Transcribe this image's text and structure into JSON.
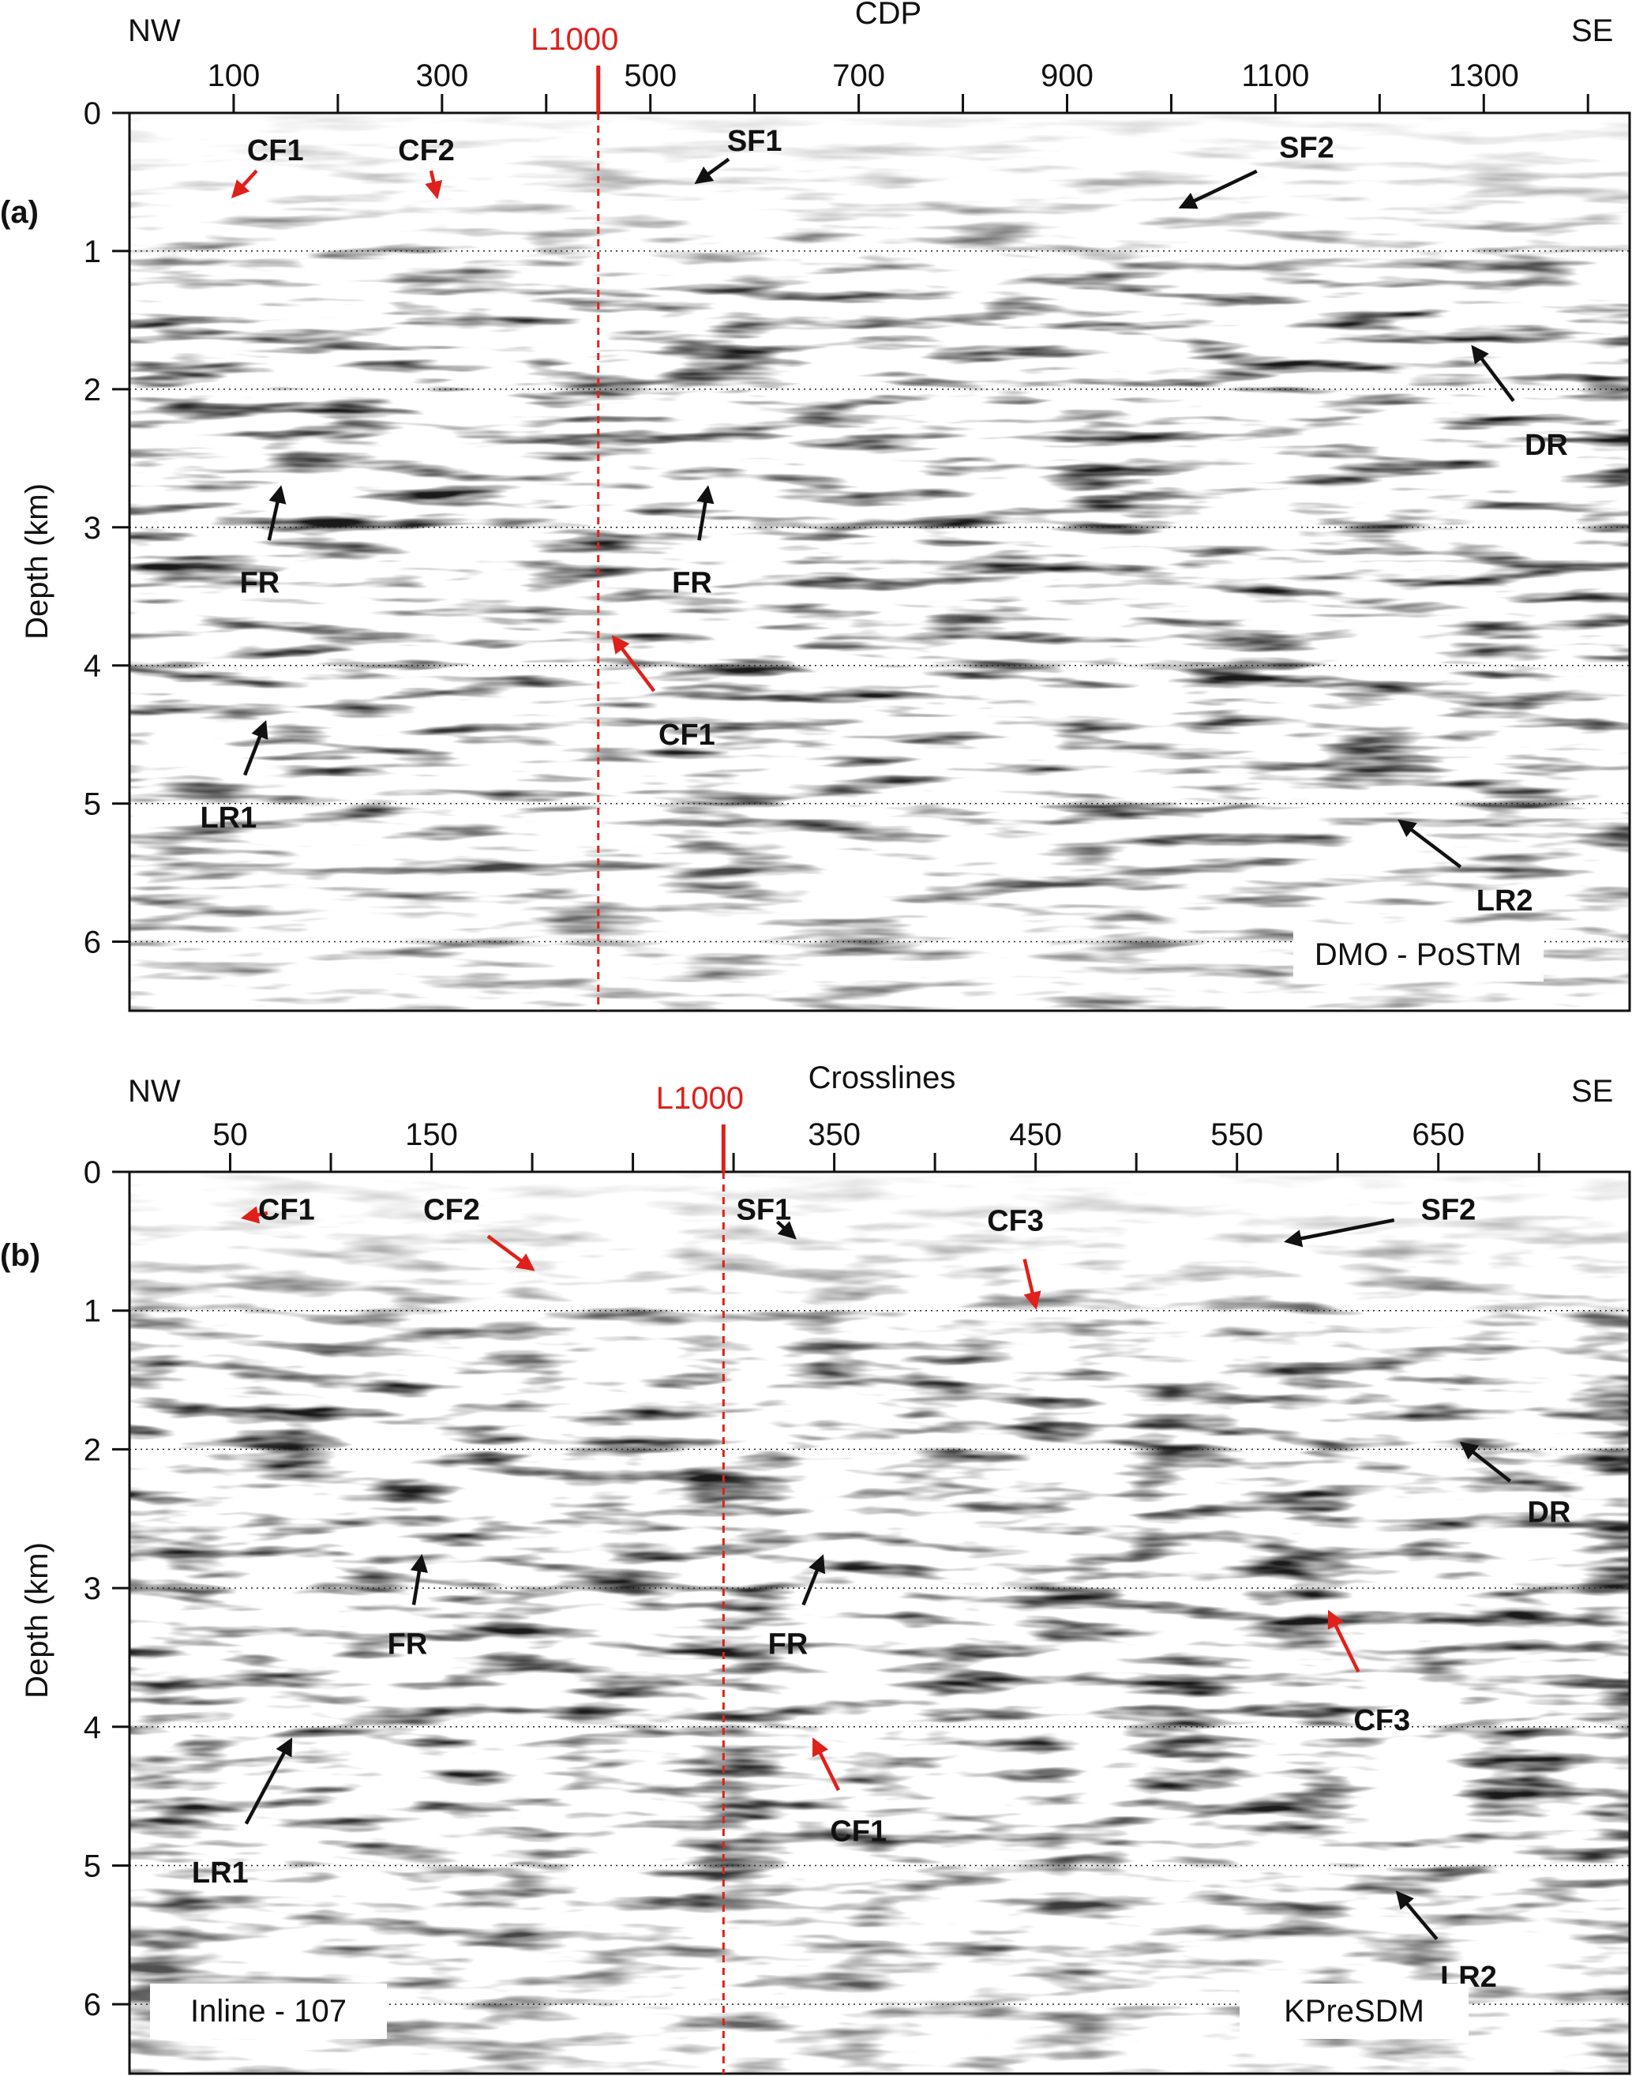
{
  "colors": {
    "red": "#e0201b",
    "black": "#111111"
  },
  "panels": [
    {
      "id": "a",
      "panel_label": "(a)",
      "x_title": "CDP",
      "left_dir": "NW",
      "right_dir": "SE",
      "line_marker": "L1000",
      "line_marker_x": 450,
      "x_range": [
        0,
        1440
      ],
      "x_ticks": [
        100,
        300,
        500,
        700,
        900,
        1100,
        1300
      ],
      "x_minor_ticks": [
        200,
        400,
        600,
        800,
        1000,
        1200,
        1400
      ],
      "y_label": "Depth (km)",
      "y_range": [
        0,
        6.5
      ],
      "y_ticks": [
        0,
        1,
        2,
        3,
        4,
        5,
        6
      ],
      "box_label": "DMO - PoSTM",
      "annotations": [
        {
          "text": "CF1",
          "color": "red",
          "tx": 140,
          "ty": 0.27,
          "ax": 100,
          "ay": 0.6
        },
        {
          "text": "CF2",
          "color": "red",
          "tx": 285,
          "ty": 0.27,
          "ax": 295,
          "ay": 0.6
        },
        {
          "text": "SF1",
          "color": "black",
          "tx": 600,
          "ty": 0.2,
          "ax": 545,
          "ay": 0.5
        },
        {
          "text": "SF2",
          "color": "black",
          "tx": 1130,
          "ty": 0.25,
          "ax": 1010,
          "ay": 0.68
        },
        {
          "text": "DR",
          "color": "black",
          "tx": 1360,
          "ty": 2.4,
          "ax": 1290,
          "ay": 1.7
        },
        {
          "text": "FR",
          "color": "black",
          "tx": 125,
          "ty": 3.4,
          "ax": 145,
          "ay": 2.72
        },
        {
          "text": "FR",
          "color": "black",
          "tx": 540,
          "ty": 3.4,
          "ax": 555,
          "ay": 2.72
        },
        {
          "text": "CF1",
          "color": "red",
          "tx": 535,
          "ty": 4.5,
          "ax": 465,
          "ay": 3.8
        },
        {
          "text": "LR1",
          "color": "black",
          "tx": 95,
          "ty": 5.1,
          "ax": 130,
          "ay": 4.42
        },
        {
          "text": "LR2",
          "color": "black",
          "tx": 1320,
          "ty": 5.7,
          "ax": 1220,
          "ay": 5.13
        }
      ]
    },
    {
      "id": "b",
      "panel_label": "(b)",
      "x_title": "Crosslines",
      "left_dir": "NW",
      "right_dir": "SE",
      "line_marker": "L1000",
      "line_marker_x": 295,
      "x_range": [
        0,
        745
      ],
      "x_ticks": [
        50,
        150,
        350,
        450,
        550,
        650
      ],
      "x_minor_ticks": [
        100,
        200,
        250,
        300,
        400,
        500,
        600,
        700
      ],
      "y_label": "Depth (km)",
      "y_range": [
        0,
        6.5
      ],
      "y_ticks": [
        0,
        1,
        2,
        3,
        4,
        5,
        6
      ],
      "box_label": "KPreSDM",
      "box_label_2": "Inline - 107",
      "annotations": [
        {
          "text": "CF1",
          "color": "red",
          "tx": 78,
          "ty": 0.27,
          "ax": 57,
          "ay": 0.33
        },
        {
          "text": "CF2",
          "color": "red",
          "tx": 160,
          "ty": 0.27,
          "ax": 200,
          "ay": 0.7
        },
        {
          "text": "SF1",
          "color": "black",
          "tx": 315,
          "ty": 0.27,
          "ax": 330,
          "ay": 0.47
        },
        {
          "text": "CF3",
          "color": "red",
          "tx": 440,
          "ty": 0.35,
          "ax": 450,
          "ay": 0.97
        },
        {
          "text": "SF2",
          "color": "black",
          "tx": 655,
          "ty": 0.27,
          "ax": 575,
          "ay": 0.5
        },
        {
          "text": "DR",
          "color": "black",
          "tx": 705,
          "ty": 2.45,
          "ax": 662,
          "ay": 1.96
        },
        {
          "text": "FR",
          "color": "black",
          "tx": 138,
          "ty": 3.4,
          "ax": 145,
          "ay": 2.78
        },
        {
          "text": "FR",
          "color": "black",
          "tx": 327,
          "ty": 3.4,
          "ax": 344,
          "ay": 2.78
        },
        {
          "text": "CF3",
          "color": "red",
          "tx": 622,
          "ty": 3.95,
          "ax": 596,
          "ay": 3.18
        },
        {
          "text": "LR1",
          "color": "black",
          "tx": 45,
          "ty": 5.05,
          "ax": 80,
          "ay": 4.1
        },
        {
          "text": "CF1",
          "color": "red",
          "tx": 362,
          "ty": 4.75,
          "ax": 340,
          "ay": 4.1
        },
        {
          "text": "LR2",
          "color": "black",
          "tx": 665,
          "ty": 5.8,
          "ax": 630,
          "ay": 5.2
        }
      ]
    }
  ]
}
